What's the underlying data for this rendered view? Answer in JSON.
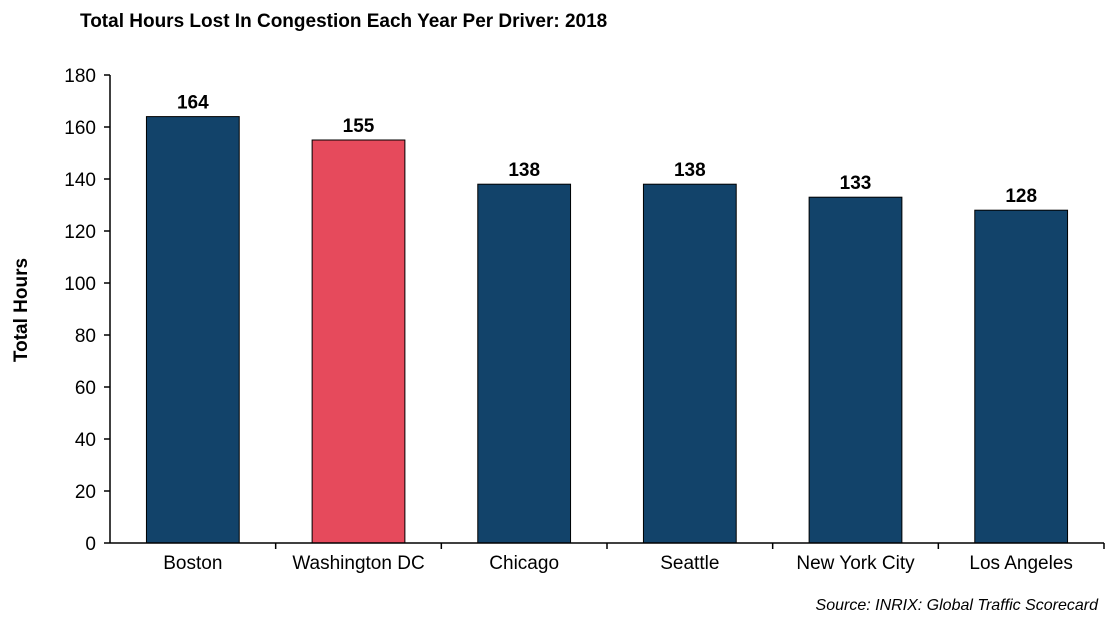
{
  "chart_data": {
    "type": "bar",
    "title": "Total Hours Lost In Congestion Each Year Per Driver: 2018",
    "ylabel": "Total Hours",
    "xlabel": "",
    "ylim": [
      0,
      180
    ],
    "yticks": [
      0,
      20,
      40,
      60,
      80,
      100,
      120,
      140,
      160,
      180
    ],
    "grid": false,
    "legend": "none",
    "categories": [
      "Boston",
      "Washington DC",
      "Chicago",
      "Seattle",
      "New York City",
      "Los Angeles"
    ],
    "values": [
      164,
      155,
      138,
      138,
      133,
      128
    ],
    "bar_colors": [
      "#12436a",
      "#e64a5c",
      "#12436a",
      "#12436a",
      "#12436a",
      "#12436a"
    ],
    "source": "Source: INRIX: Global Traffic Scorecard"
  }
}
